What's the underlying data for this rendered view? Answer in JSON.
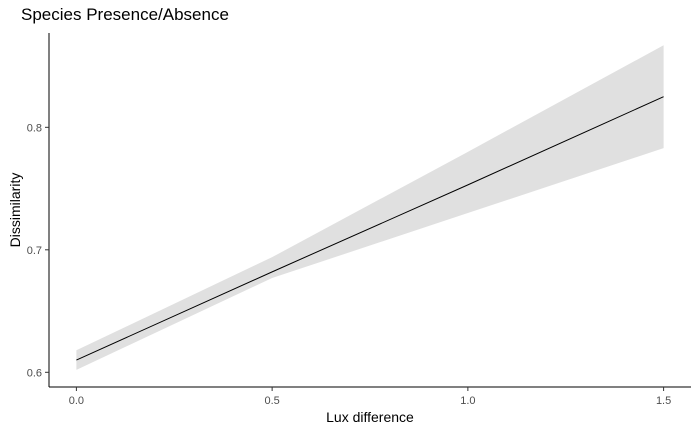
{
  "chart_data": {
    "type": "line",
    "title": "Species Presence/Absence",
    "xlabel": "Lux difference",
    "ylabel": "Dissimilarity",
    "xlim": [
      -0.07,
      1.57
    ],
    "ylim": [
      0.588,
      0.877
    ],
    "x_ticks": [
      0.0,
      0.5,
      1.0,
      1.5
    ],
    "x_tick_labels": [
      "0.0",
      "0.5",
      "1.0",
      "1.5"
    ],
    "y_ticks": [
      0.6,
      0.7,
      0.8
    ],
    "y_tick_labels": [
      "0.6",
      "0.7",
      "0.8"
    ],
    "grid": false,
    "series": [
      {
        "x": [
          0.0,
          0.5,
          1.0,
          1.5
        ],
        "fit": [
          0.61,
          0.682,
          0.753,
          0.825
        ],
        "lower": [
          0.602,
          0.677,
          0.73,
          0.783
        ],
        "upper": [
          0.618,
          0.694,
          0.78,
          0.867
        ]
      }
    ],
    "colors": {
      "line": "#000000",
      "ribbon": "#e0e0e0",
      "axis": "#000000",
      "tick_text": "#4d4d4d"
    }
  }
}
